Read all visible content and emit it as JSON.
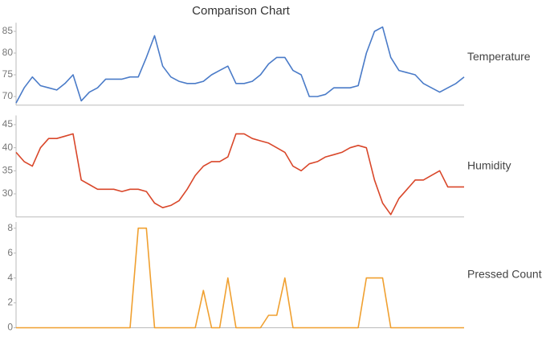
{
  "chart_data": [
    {
      "type": "line",
      "title": "Comparison Chart",
      "ylim": [
        68,
        87
      ],
      "yticks": [
        70,
        75,
        80,
        85
      ],
      "series": [
        {
          "name": "Temperature",
          "color": "#4a7bc8",
          "values": [
            68.5,
            72,
            74.5,
            72.5,
            72,
            71.5,
            73,
            75,
            69,
            71,
            72,
            74,
            74,
            74,
            74.5,
            74.5,
            79,
            84,
            77,
            74.5,
            73.5,
            73,
            73,
            73.5,
            75,
            76,
            77,
            73,
            73,
            73.5,
            75,
            77.5,
            79,
            79,
            76,
            75,
            70,
            70,
            70.5,
            72,
            72,
            72,
            72.5,
            80,
            85,
            86,
            79,
            76,
            75.5,
            75,
            73,
            72,
            71,
            72,
            73,
            74.5
          ]
        }
      ]
    },
    {
      "type": "line",
      "ylim": [
        25,
        47
      ],
      "yticks": [
        30,
        35,
        40,
        45
      ],
      "series": [
        {
          "name": "Humidity",
          "color": "#d9472a",
          "values": [
            39,
            37,
            36,
            40,
            42,
            42,
            42.5,
            43,
            33,
            32,
            31,
            31,
            31,
            30.5,
            31,
            31,
            30.5,
            28,
            27,
            27.5,
            28.5,
            31,
            34,
            36,
            37,
            37,
            38,
            43,
            43,
            42,
            41.5,
            41,
            40,
            39,
            36,
            35,
            36.5,
            37,
            38,
            38.5,
            39,
            40,
            40.5,
            40,
            33,
            28,
            25.5,
            29,
            31,
            33,
            33,
            34,
            35,
            31.5,
            31.5,
            31.5
          ]
        }
      ]
    },
    {
      "type": "line",
      "ylim": [
        0,
        8.5
      ],
      "yticks": [
        0,
        2,
        4,
        6,
        8
      ],
      "series": [
        {
          "name": "Pressed Count",
          "color": "#f0a030",
          "values": [
            0,
            0,
            0,
            0,
            0,
            0,
            0,
            0,
            0,
            0,
            0,
            0,
            0,
            0,
            0,
            8,
            8,
            0,
            0,
            0,
            0,
            0,
            0,
            3,
            0,
            0,
            4,
            0,
            0,
            0,
            0,
            1,
            1,
            4,
            0,
            0,
            0,
            0,
            0,
            0,
            0,
            0,
            0,
            4,
            4,
            4,
            0,
            0,
            0,
            0,
            0,
            0,
            0,
            0,
            0,
            0
          ]
        }
      ]
    }
  ]
}
